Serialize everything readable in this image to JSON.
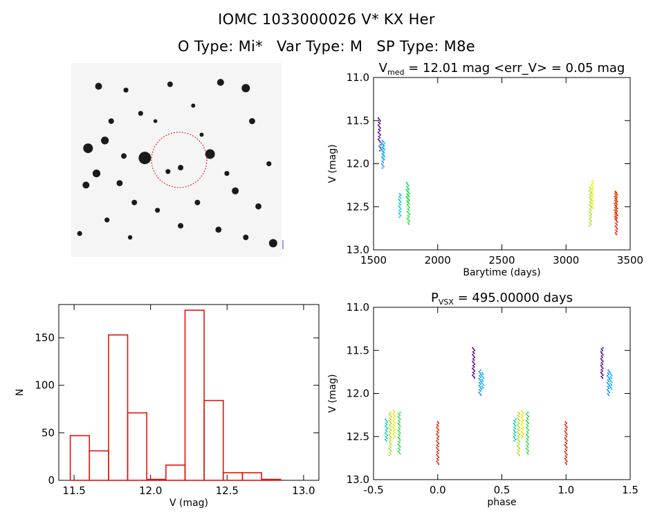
{
  "header": {
    "title": "IOMC 1033000026    V* KX Her",
    "otype": "O Type: Mi*",
    "vartype": "Var Type: M",
    "sptype": "SP Type: M8e"
  },
  "finder": {
    "stars": [
      [
        0.13,
        0.12,
        0.025
      ],
      [
        0.26,
        0.14,
        0.018
      ],
      [
        0.47,
        0.11,
        0.02
      ],
      [
        0.71,
        0.1,
        0.025
      ],
      [
        0.83,
        0.13,
        0.03
      ],
      [
        0.19,
        0.3,
        0.02
      ],
      [
        0.33,
        0.26,
        0.018
      ],
      [
        0.58,
        0.22,
        0.015
      ],
      [
        0.86,
        0.3,
        0.022
      ],
      [
        0.08,
        0.44,
        0.035
      ],
      [
        0.16,
        0.4,
        0.028
      ],
      [
        0.35,
        0.49,
        0.045
      ],
      [
        0.66,
        0.47,
        0.035
      ],
      [
        0.52,
        0.54,
        0.02
      ],
      [
        0.46,
        0.56,
        0.018
      ],
      [
        0.12,
        0.57,
        0.028
      ],
      [
        0.23,
        0.62,
        0.022
      ],
      [
        0.78,
        0.66,
        0.025
      ],
      [
        0.07,
        0.63,
        0.025
      ],
      [
        0.3,
        0.72,
        0.02
      ],
      [
        0.41,
        0.76,
        0.018
      ],
      [
        0.6,
        0.72,
        0.02
      ],
      [
        0.89,
        0.74,
        0.022
      ],
      [
        0.17,
        0.81,
        0.018
      ],
      [
        0.52,
        0.84,
        0.02
      ],
      [
        0.7,
        0.86,
        0.022
      ],
      [
        0.96,
        0.93,
        0.03
      ],
      [
        0.04,
        0.88,
        0.018
      ],
      [
        0.28,
        0.9,
        0.016
      ],
      [
        0.83,
        0.9,
        0.02
      ],
      [
        0.94,
        0.52,
        0.018
      ],
      [
        0.62,
        0.37,
        0.015
      ],
      [
        0.25,
        0.48,
        0.02
      ],
      [
        0.4,
        0.3,
        0.014
      ],
      [
        0.74,
        0.57,
        0.018
      ]
    ]
  },
  "chart_data": [
    {
      "type": "scatter",
      "title": "V_med = 12.01 mag <err_V> = 0.05 mag",
      "title_main": "V",
      "title_sub": "med",
      "title_rest": " = 12.01 mag <err_V> = 0.05 mag",
      "xlabel": "Barytime (days)",
      "ylabel": "V (mag)",
      "xlim": [
        1500,
        3500
      ],
      "ylim": [
        13.0,
        11.0
      ],
      "xticks": [
        1500,
        2000,
        2500,
        3000,
        3500
      ],
      "yticks": [
        11.0,
        11.5,
        12.0,
        12.5,
        13.0
      ],
      "clusters": [
        {
          "x": 1545,
          "ymin": 11.47,
          "ymax": 11.75,
          "color": "#4b0082"
        },
        {
          "x": 1553,
          "ymin": 11.78,
          "ymax": 11.85,
          "color": "#1e3cc8"
        },
        {
          "x": 1572,
          "ymin": 11.73,
          "ymax": 12.05,
          "color": "#1e90ff"
        },
        {
          "x": 1580,
          "ymin": 11.76,
          "ymax": 11.95,
          "color": "#00bfff"
        },
        {
          "x": 1705,
          "ymin": 12.35,
          "ymax": 12.62,
          "color": "#00d0c0"
        },
        {
          "x": 1765,
          "ymin": 12.22,
          "ymax": 12.45,
          "color": "#00e060"
        },
        {
          "x": 1772,
          "ymin": 12.3,
          "ymax": 12.7,
          "color": "#20e040"
        },
        {
          "x": 3190,
          "ymin": 12.28,
          "ymax": 12.72,
          "color": "#b0e020"
        },
        {
          "x": 3205,
          "ymin": 12.2,
          "ymax": 12.52,
          "color": "#e0f000"
        },
        {
          "x": 3385,
          "ymin": 12.32,
          "ymax": 12.65,
          "color": "#f06000"
        },
        {
          "x": 3393,
          "ymin": 12.33,
          "ymax": 12.82,
          "color": "#e02000"
        }
      ]
    },
    {
      "type": "bar",
      "xlabel": "V (mag)",
      "ylabel": "N",
      "xlim": [
        11.4,
        13.1
      ],
      "ylim": [
        0,
        185
      ],
      "xticks": [
        11.5,
        12.0,
        12.5,
        13.0
      ],
      "yticks": [
        0,
        50,
        100,
        150
      ],
      "bin_width": 0.125,
      "bins": [
        {
          "x0": 11.475,
          "value": 47
        },
        {
          "x0": 11.6,
          "value": 31
        },
        {
          "x0": 11.725,
          "value": 153
        },
        {
          "x0": 11.85,
          "value": 71
        },
        {
          "x0": 11.975,
          "value": 1
        },
        {
          "x0": 12.1,
          "value": 16
        },
        {
          "x0": 12.225,
          "value": 179
        },
        {
          "x0": 12.35,
          "value": 84
        },
        {
          "x0": 12.475,
          "value": 8
        },
        {
          "x0": 12.6,
          "value": 8
        },
        {
          "x0": 12.725,
          "value": 1
        }
      ],
      "color": "#e0140c"
    },
    {
      "type": "scatter",
      "title": "P_VSX = 495.00000 days",
      "title_main": "P",
      "title_sub": "VSX",
      "title_rest": " = 495.00000 days",
      "xlabel": "phase",
      "ylabel": "V (mag)",
      "xlim": [
        -0.5,
        1.5
      ],
      "ylim": [
        13.0,
        11.0
      ],
      "xticks": [
        -0.5,
        0.0,
        0.5,
        1.0,
        1.5
      ],
      "yticks": [
        11.0,
        11.5,
        12.0,
        12.5,
        13.0
      ],
      "clusters": [
        {
          "x": -0.4,
          "ymin": 12.3,
          "ymax": 12.55,
          "color": "#00d0c0"
        },
        {
          "x": -0.37,
          "ymin": 12.22,
          "ymax": 12.72,
          "color": "#b0e020"
        },
        {
          "x": -0.34,
          "ymin": 12.2,
          "ymax": 12.52,
          "color": "#e0f000"
        },
        {
          "x": -0.3,
          "ymin": 12.22,
          "ymax": 12.7,
          "color": "#20e040"
        },
        {
          "x": 0.0,
          "ymin": 12.33,
          "ymax": 12.82,
          "color": "#e02000"
        },
        {
          "x": 0.28,
          "ymin": 11.47,
          "ymax": 11.82,
          "color": "#4b0082"
        },
        {
          "x": 0.33,
          "ymin": 11.73,
          "ymax": 12.02,
          "color": "#1e90ff"
        },
        {
          "x": 0.35,
          "ymin": 11.76,
          "ymax": 11.95,
          "color": "#00bfff"
        },
        {
          "x": 0.6,
          "ymin": 12.3,
          "ymax": 12.55,
          "color": "#00d0c0"
        },
        {
          "x": 0.63,
          "ymin": 12.22,
          "ymax": 12.72,
          "color": "#b0e020"
        },
        {
          "x": 0.66,
          "ymin": 12.2,
          "ymax": 12.52,
          "color": "#e0f000"
        },
        {
          "x": 0.7,
          "ymin": 12.22,
          "ymax": 12.7,
          "color": "#20e040"
        },
        {
          "x": 1.0,
          "ymin": 12.33,
          "ymax": 12.82,
          "color": "#e02000"
        },
        {
          "x": 1.28,
          "ymin": 11.47,
          "ymax": 11.82,
          "color": "#4b0082"
        },
        {
          "x": 1.33,
          "ymin": 11.73,
          "ymax": 12.02,
          "color": "#1e90ff"
        },
        {
          "x": 1.35,
          "ymin": 11.76,
          "ymax": 11.95,
          "color": "#00bfff"
        }
      ]
    }
  ]
}
